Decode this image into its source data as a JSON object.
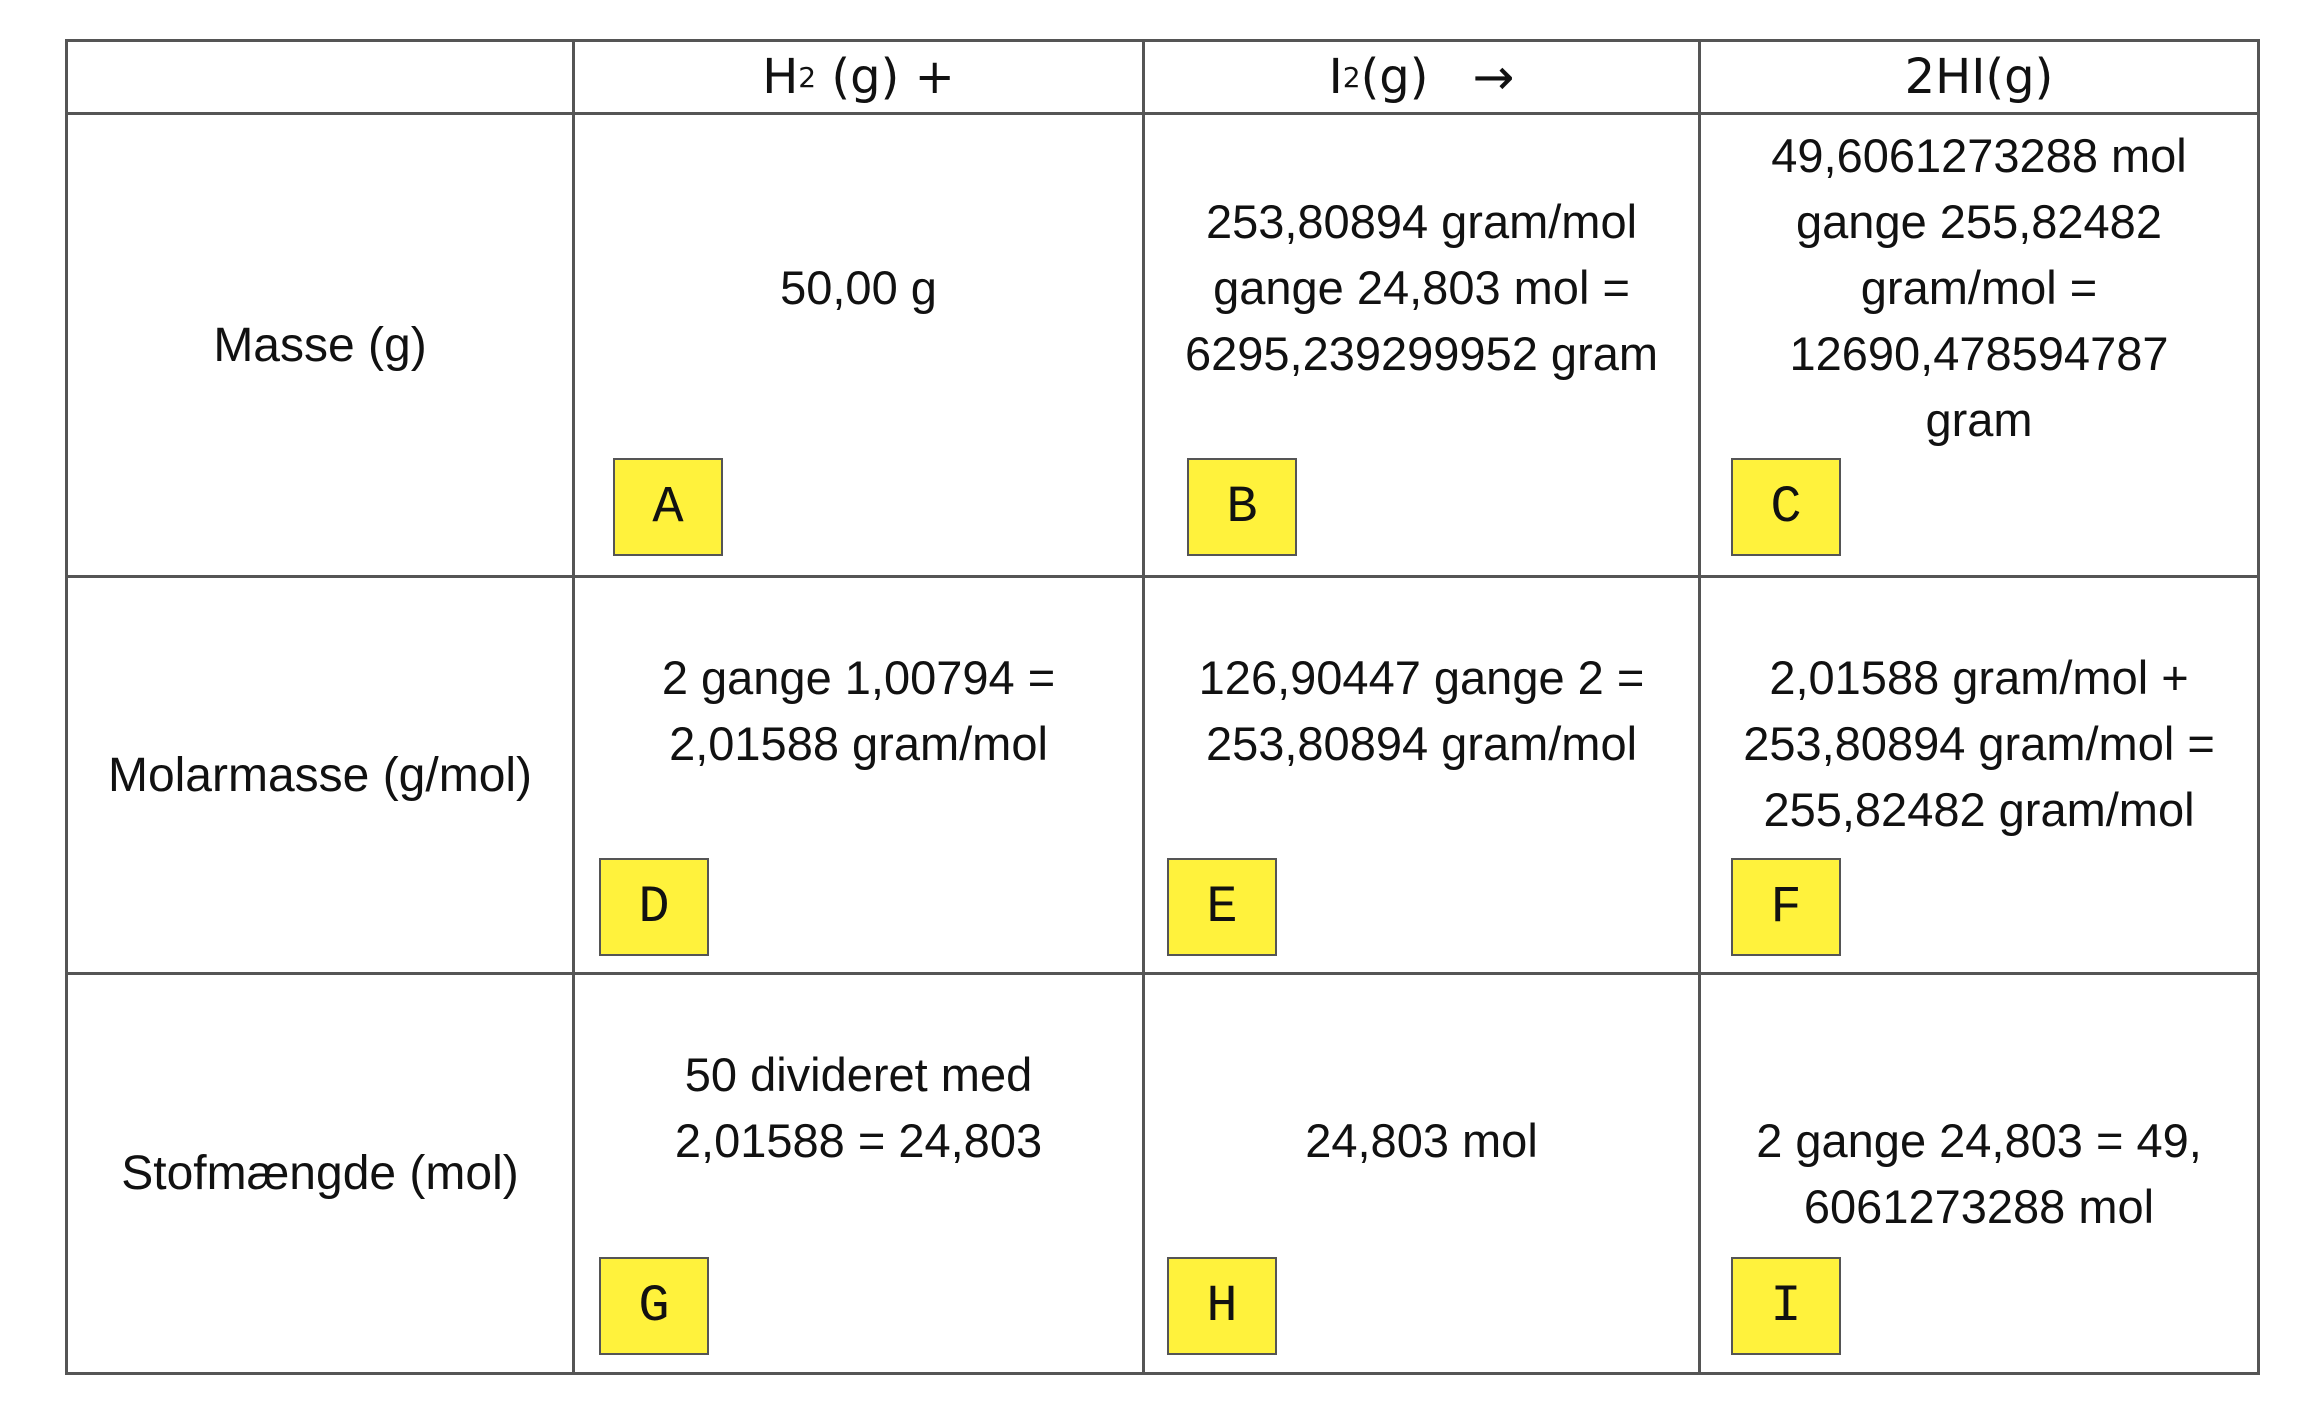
{
  "table": {
    "header": {
      "h2": {
        "main": "H",
        "sub": "2",
        "rest": " (g) +"
      },
      "i2": {
        "main": "I",
        "sub": "2",
        "rest": "(g)",
        "arrow": "→"
      },
      "hi": "2HI(g)"
    },
    "rows": [
      {
        "label": "Masse (g)",
        "cells": [
          {
            "tag": "A",
            "text": "50,00 g"
          },
          {
            "tag": "B",
            "text": "253,80894 gram/mol\ngange 24,803 mol =\n6295,239299952 gram"
          },
          {
            "tag": "C",
            "text": "49,6061273288 mol\ngange 255,82482\ngram/mol =\n12690,478594787\ngram"
          }
        ]
      },
      {
        "label": "Molarmasse (g/mol)",
        "cells": [
          {
            "tag": "D",
            "text": "2 gange 1,00794 =\n2,01588 gram/mol"
          },
          {
            "tag": "E",
            "text": "126,90447 gange 2 =\n253,80894 gram/mol"
          },
          {
            "tag": "F",
            "text": "2,01588 gram/mol +\n253,80894 gram/mol =\n255,82482 gram/mol"
          }
        ]
      },
      {
        "label": "Stofmængde (mol)",
        "cells": [
          {
            "tag": "G",
            "text": "50 divideret med\n2,01588 = 24,803"
          },
          {
            "tag": "H",
            "text": "24,803 mol"
          },
          {
            "tag": "I",
            "text": "2 gange 24,803 = 49,\n6061273288 mol"
          }
        ]
      }
    ]
  }
}
